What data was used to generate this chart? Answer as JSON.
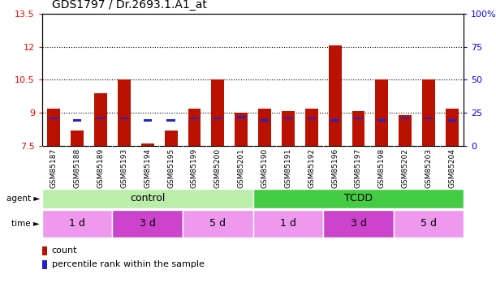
{
  "title": "GDS1797 / Dr.2693.1.A1_at",
  "samples": [
    "GSM85187",
    "GSM85188",
    "GSM85189",
    "GSM85193",
    "GSM85194",
    "GSM85195",
    "GSM85199",
    "GSM85200",
    "GSM85201",
    "GSM85190",
    "GSM85191",
    "GSM85192",
    "GSM85196",
    "GSM85197",
    "GSM85198",
    "GSM85202",
    "GSM85203",
    "GSM85204"
  ],
  "red_values": [
    9.2,
    8.2,
    9.9,
    10.5,
    7.6,
    8.2,
    9.2,
    10.5,
    9.0,
    9.2,
    9.1,
    9.2,
    12.05,
    9.1,
    10.5,
    8.9,
    10.5,
    9.2
  ],
  "blue_values": [
    8.75,
    8.65,
    8.75,
    8.75,
    8.65,
    8.65,
    8.75,
    8.75,
    8.8,
    8.65,
    8.75,
    8.75,
    8.65,
    8.75,
    8.65,
    8.75,
    8.75,
    8.65
  ],
  "ylim_left": [
    7.5,
    13.5
  ],
  "ylim_right": [
    0,
    100
  ],
  "yticks_left": [
    7.5,
    9.0,
    10.5,
    12.0,
    13.5
  ],
  "yticks_right": [
    0,
    25,
    50,
    75,
    100
  ],
  "ytick_labels_left": [
    "7.5",
    "9",
    "10.5",
    "12",
    "13.5"
  ],
  "ytick_labels_right": [
    "0",
    "25",
    "50",
    "75",
    "100%"
  ],
  "hlines": [
    9.0,
    10.5,
    12.0
  ],
  "bar_bottom": 7.5,
  "bar_color": "#BB1100",
  "blue_color": "#2222CC",
  "ctrl_light": "#BBEEAA",
  "tcdd_dark": "#44CC44",
  "time_light": "#EE99EE",
  "time_dark": "#CC44CC",
  "tick_bg": "#CCCCCC",
  "figsize": [
    6.11,
    3.75
  ]
}
